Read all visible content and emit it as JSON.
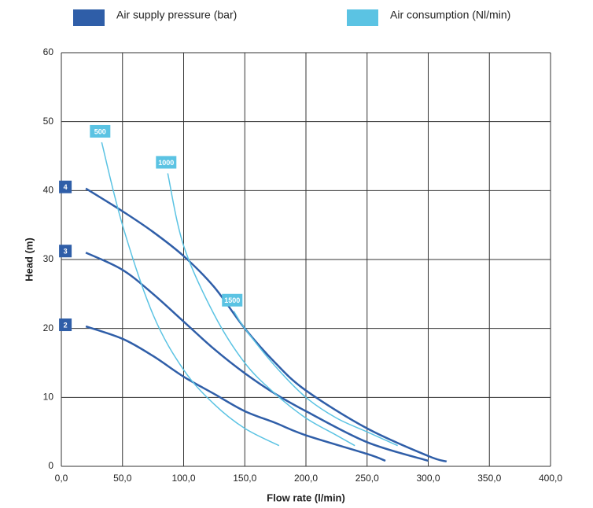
{
  "chart_data": {
    "type": "line",
    "x_label": "Flow rate (l/min)",
    "y_label": "Head (m)",
    "legend": [
      {
        "name": "Air supply pressure (bar)",
        "color": "#2f5ea8"
      },
      {
        "name": "Air consumption (Nl/min)",
        "color": "#5bc3e3"
      }
    ],
    "xlim": [
      0,
      400
    ],
    "ylim": [
      0,
      60
    ],
    "grid": true,
    "xticks": [
      {
        "value": 0,
        "label": "0,0"
      },
      {
        "value": 50,
        "label": "50,0"
      },
      {
        "value": 100,
        "label": "100,0"
      },
      {
        "value": 150,
        "label": "150,0"
      },
      {
        "value": 200,
        "label": "200,0"
      },
      {
        "value": 250,
        "label": "250,0"
      },
      {
        "value": 300,
        "label": "300,0"
      },
      {
        "value": 350,
        "label": "350,0"
      },
      {
        "value": 400,
        "label": "400,0"
      }
    ],
    "yticks": [
      0,
      10,
      20,
      30,
      40,
      50,
      60
    ],
    "series": [
      {
        "name": "2",
        "color": "#2f5ea8",
        "x": [
          20,
          50,
          75,
          100,
          125,
          150,
          175,
          200,
          250,
          265
        ],
        "values": [
          20.3,
          18.5,
          16,
          13,
          10.5,
          8,
          6.3,
          4.5,
          1.8,
          0.8
        ]
      },
      {
        "name": "3",
        "color": "#2f5ea8",
        "x": [
          20,
          50,
          75,
          100,
          125,
          150,
          175,
          200,
          250,
          300
        ],
        "values": [
          31,
          28.5,
          25,
          21,
          17,
          13.5,
          10.5,
          8,
          3.5,
          0.8
        ]
      },
      {
        "name": "4",
        "color": "#2f5ea8",
        "x": [
          20,
          50,
          75,
          100,
          125,
          150,
          175,
          200,
          250,
          300,
          315
        ],
        "values": [
          40.3,
          37,
          34,
          30.5,
          26,
          20,
          15,
          11,
          5.5,
          1.5,
          0.7
        ]
      },
      {
        "name": "500",
        "color": "#5bc3e3",
        "x": [
          33,
          50,
          75,
          100,
          125,
          150,
          178
        ],
        "values": [
          47,
          35,
          22,
          14,
          9,
          5.5,
          3
        ]
      },
      {
        "name": "1000",
        "color": "#5bc3e3",
        "x": [
          87,
          100,
          125,
          150,
          175,
          200,
          225,
          240
        ],
        "values": [
          42.5,
          32,
          22,
          15,
          10.5,
          7,
          4.5,
          3
        ]
      },
      {
        "name": "1500",
        "color": "#5bc3e3",
        "x": [
          141,
          150,
          175,
          200,
          225,
          250,
          275
        ],
        "values": [
          22.5,
          20,
          14.5,
          10,
          7,
          5,
          3
        ]
      }
    ]
  }
}
